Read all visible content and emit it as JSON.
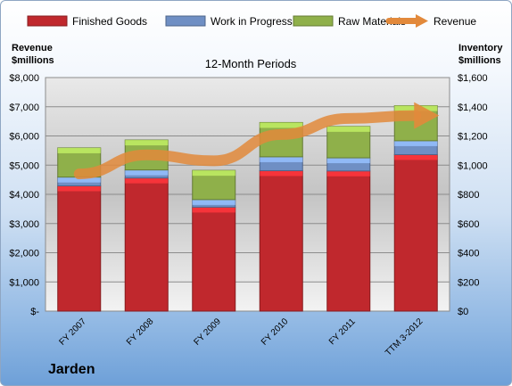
{
  "company": "Jarden",
  "chart_data": {
    "type": "bar",
    "stacked": true,
    "title": "12-Month Periods",
    "left_axis_label": [
      "Revenue",
      "$millions"
    ],
    "right_axis_label": [
      "Inventory",
      "$millions"
    ],
    "categories": [
      "FY 2007",
      "FY 2008",
      "FY 2009",
      "FY 2010",
      "FY 2011",
      "TTM 3-2012"
    ],
    "left_ticks": [
      "$-",
      "$1,000",
      "$2,000",
      "$3,000",
      "$4,000",
      "$5,000",
      "$6,000",
      "$7,000",
      "$8,000"
    ],
    "right_ticks": [
      "$0",
      "$200",
      "$400",
      "$600",
      "$800",
      "$1,000",
      "$1,200",
      "$1,400",
      "$1,600"
    ],
    "left_ylim": [
      0,
      8000
    ],
    "right_ylim": [
      0,
      1600
    ],
    "grid": true,
    "legend_position": "top",
    "series": [
      {
        "name": "Finished Goods",
        "axis": "right",
        "kind": "bar",
        "color": "#c0282d",
        "values": [
          858,
          912,
          712,
          962,
          960,
          1072
        ]
      },
      {
        "name": "Work in Progress",
        "axis": "right",
        "kind": "bar",
        "color": "#6f8fc4",
        "values": [
          60,
          55,
          52,
          95,
          90,
          95
        ]
      },
      {
        "name": "Raw Materials",
        "axis": "right",
        "kind": "bar",
        "color": "#8fb04a",
        "values": [
          200,
          205,
          200,
          235,
          215,
          240
        ]
      },
      {
        "name": "Revenue",
        "axis": "left",
        "kind": "line",
        "color": "#e2893b",
        "values": [
          4700,
          5350,
          5150,
          6050,
          6600,
          6700
        ]
      }
    ]
  }
}
